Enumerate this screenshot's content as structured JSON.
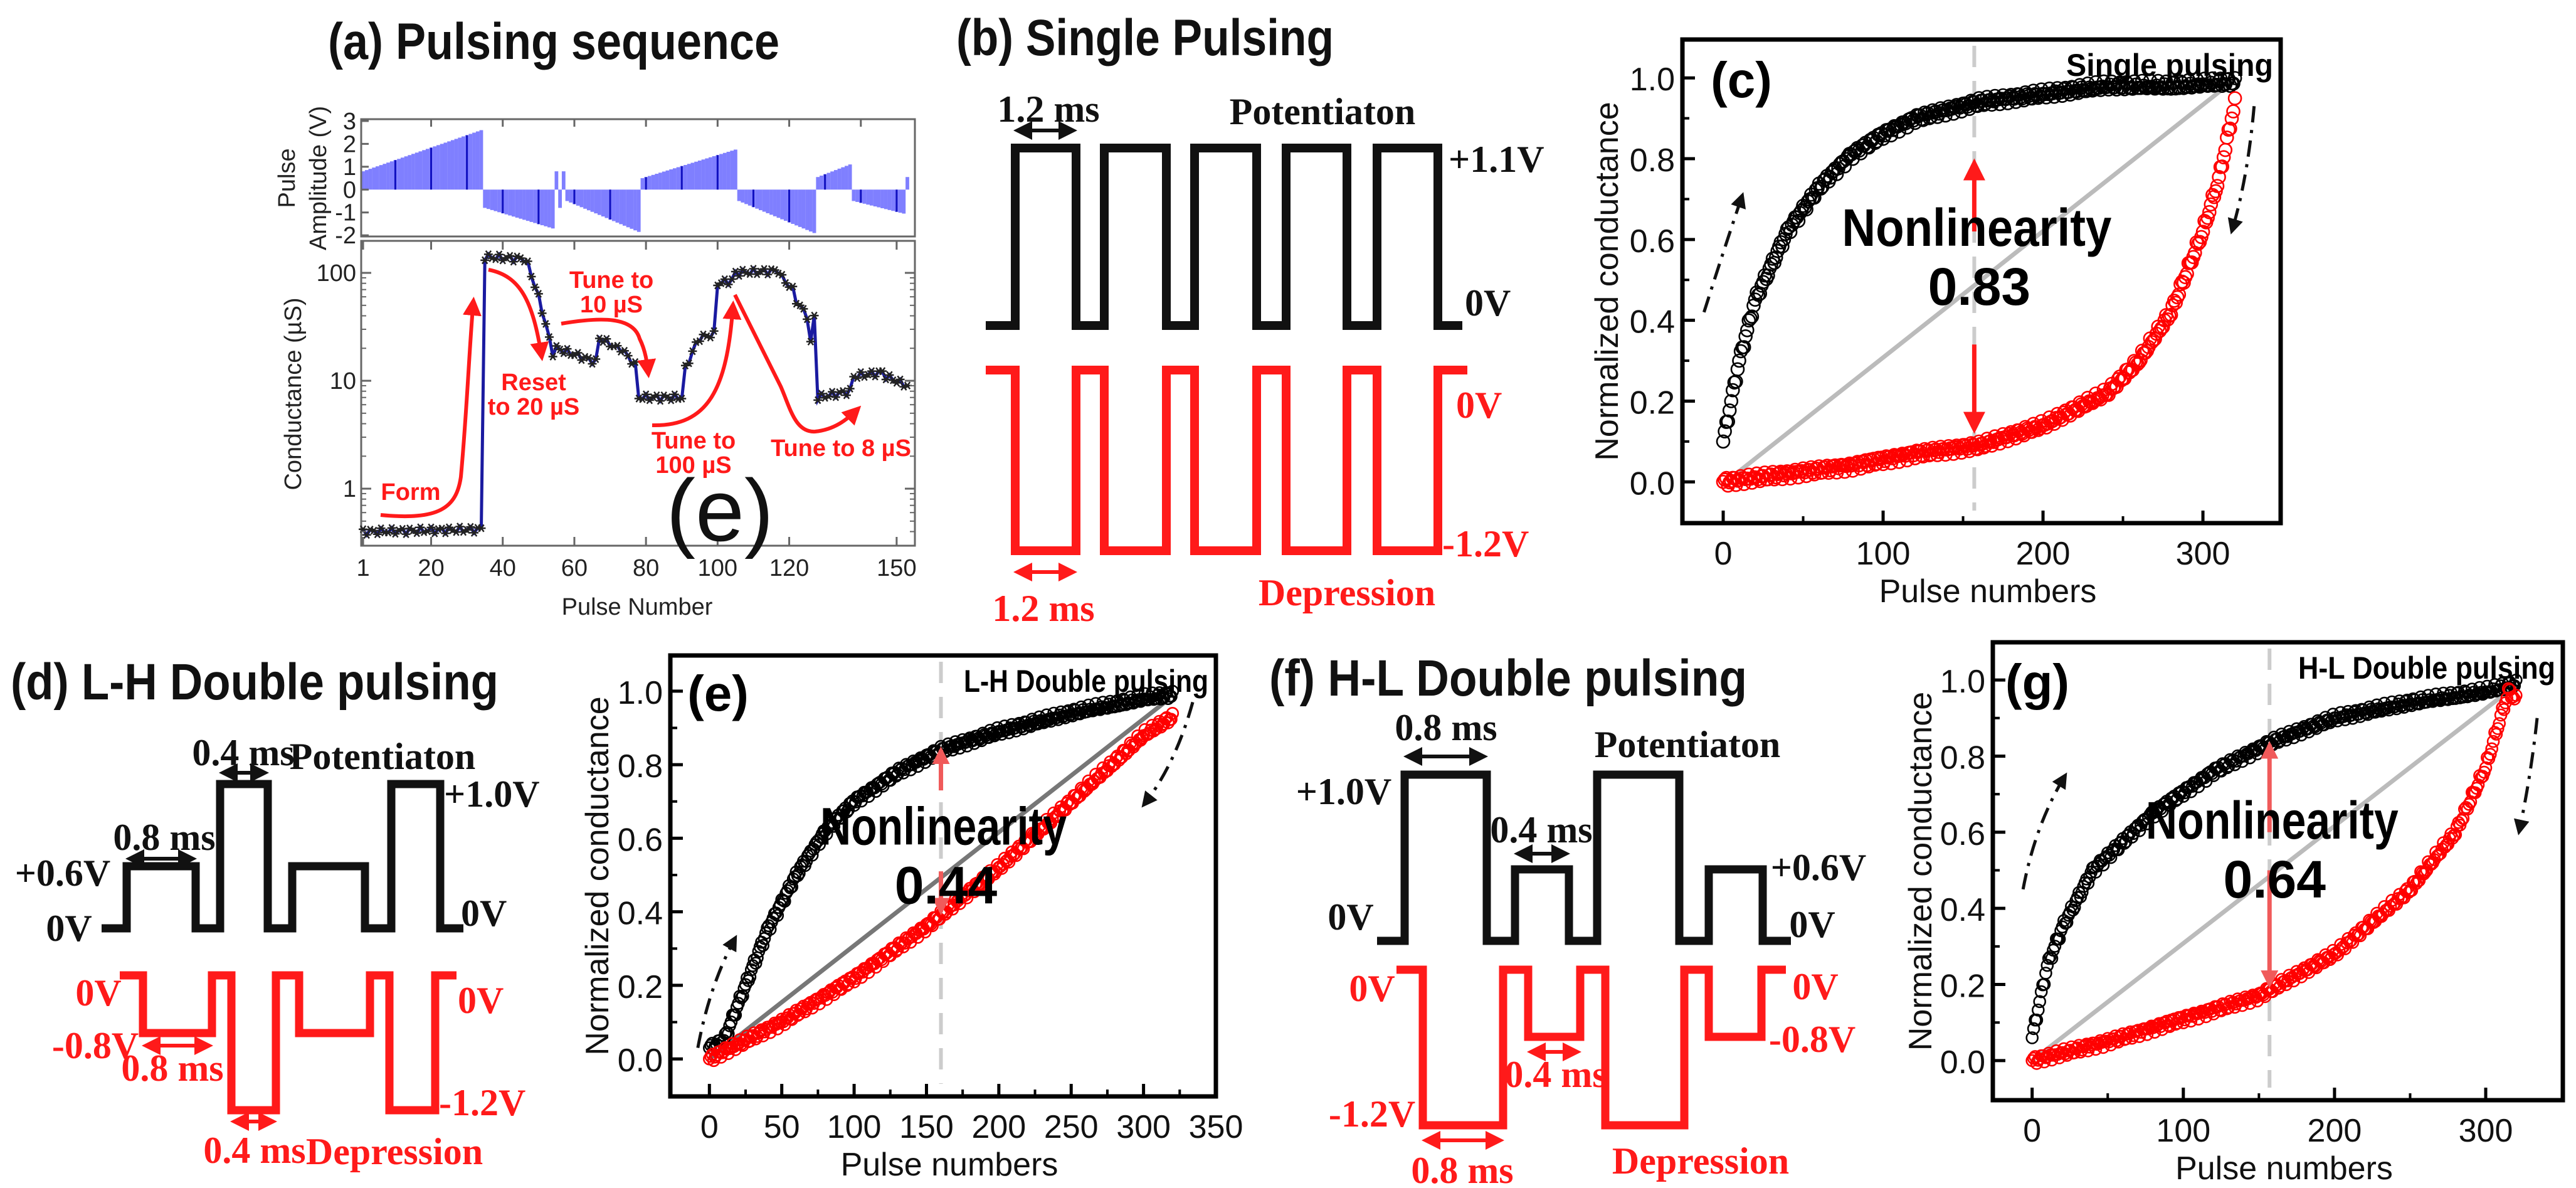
{
  "figure": {
    "a": {
      "title": "(a) Pulsing sequence",
      "overlay_label": "(e)",
      "annotations": {
        "form": "Form",
        "reset_1": "Reset",
        "reset_2": "to 20 µS",
        "tune10_1": "Tune to",
        "tune10_2": "10 µS",
        "tune100_1": "Tune to",
        "tune100_2": "100 µS",
        "tune8": "Tune to 8 µS"
      }
    },
    "b": {
      "title": "(b) Single Pulsing",
      "pot_label": "Potentiaton",
      "dep_label": "Depression",
      "width_top": "1.2 ms",
      "width_bottom": "1.2 ms",
      "v_high": "+1.1V",
      "v_zero_top": "0V",
      "v_zero_bottom": "0V",
      "v_low": "-1.2V"
    },
    "d": {
      "title": "(d) L-H Double pulsing",
      "pot_label": "Potentiaton",
      "dep_label": "Depression",
      "w_short_top": "0.4 ms",
      "w_long_top": "0.8 ms",
      "w_long_bottom": "0.8 ms",
      "w_short_bottom": "0.4 ms",
      "v_high": "+1.0V",
      "v_low_pos": "+0.6V",
      "v_zero_left": "0V",
      "v_zero_right": "0V",
      "v_zero_red_left": "0V",
      "v_zero_red_right": "0V",
      "v_neg_small": "-0.8V",
      "v_neg_big": "-1.2V"
    },
    "f": {
      "title": "(f) H-L Double pulsing",
      "pot_label": "Potentiaton",
      "dep_label": "Depression",
      "w_long_top": "0.8 ms",
      "w_short_top": "0.4 ms",
      "w_short_bottom": "0.4 ms",
      "w_long_bottom": "0.8 ms",
      "v_high": "+1.0V",
      "v_low_pos": "+0.6V",
      "v_zero_left": "0V",
      "v_zero_right": "0V",
      "v_zero_red_left": "0V",
      "v_zero_red_right": "0V",
      "v_neg_small": "-0.8V",
      "v_neg_big": "-1.2V"
    }
  },
  "chart_data": [
    {
      "id": "a_amplitude",
      "type": "bar",
      "ylabel_line1": "Pulse",
      "ylabel_line2": "Amplitude (V)",
      "xlim": [
        0.47,
        155.1
      ],
      "ylim": [
        -2.05,
        3.08
      ],
      "yticks": [
        -2,
        -1,
        0,
        1,
        2,
        3
      ],
      "color": "#7f7fff",
      "segments_note": "pulse_start, pulse_end, amplitude_start, amplitude_end",
      "segments": [
        [
          1,
          34,
          0.8,
          2.6
        ],
        [
          35,
          54,
          -0.8,
          -1.7
        ],
        [
          55,
          55,
          0.8,
          0.8
        ],
        [
          56,
          56,
          -0.8,
          -0.8
        ],
        [
          57,
          57,
          0.8,
          0.8
        ],
        [
          58,
          78,
          -0.5,
          -1.85
        ],
        [
          79,
          105,
          0.5,
          1.75
        ],
        [
          106,
          127,
          -0.5,
          -1.9
        ],
        [
          128,
          137,
          0.55,
          1.1
        ],
        [
          138,
          152,
          -0.5,
          -1.05
        ],
        [
          153,
          153,
          0.55,
          0.55
        ]
      ]
    },
    {
      "id": "a_conductance",
      "type": "line",
      "xlabel": "Pulse Number",
      "ylabel": "Conductance (µS)",
      "yscale": "log",
      "xlim": [
        0.47,
        155.1
      ],
      "ylim": [
        0.296,
        198
      ],
      "xticks": [
        1,
        20,
        40,
        60,
        80,
        100,
        120,
        150
      ],
      "yticks": [
        1,
        10,
        100
      ],
      "color": "#1a1aa0",
      "segments": [
        [
          1,
          34,
          0.4,
          0.42
        ],
        [
          35,
          35,
          140,
          140
        ],
        [
          36,
          46,
          140,
          135
        ],
        [
          47,
          50,
          120,
          60
        ],
        [
          51,
          54,
          45,
          18
        ],
        [
          55,
          66,
          20,
          15
        ],
        [
          67,
          72,
          25,
          20
        ],
        [
          73,
          77,
          20,
          14
        ],
        [
          78,
          90,
          7,
          7
        ],
        [
          91,
          94,
          13,
          22
        ],
        [
          95,
          99,
          25,
          27
        ],
        [
          100,
          104,
          80,
          85
        ],
        [
          105,
          117,
          100,
          105
        ],
        [
          118,
          121,
          90,
          70
        ],
        [
          122,
          125,
          55,
          40
        ],
        [
          126,
          127,
          22,
          40
        ],
        [
          128,
          137,
          7,
          8
        ],
        [
          138,
          146,
          11,
          12
        ],
        [
          147,
          153,
          11,
          9
        ]
      ]
    },
    {
      "id": "c",
      "type": "scatter",
      "panel_label": "(c)",
      "title": "Single pulsing",
      "xlabel": "Pulse numbers",
      "ylabel": "Normalized conductance",
      "xlim": [
        -25.5,
        348.6
      ],
      "ylim": [
        -0.102,
        1.095
      ],
      "xticks": [
        0,
        100,
        200,
        300
      ],
      "yticks": [
        0.0,
        0.2,
        0.4,
        0.6,
        0.8,
        1.0
      ],
      "series": [
        {
          "name": "Potentiation",
          "color": "#000000",
          "points": [
            [
              0,
              0.1
            ],
            [
              10,
              0.3
            ],
            [
              20,
              0.45
            ],
            [
              40,
              0.62
            ],
            [
              60,
              0.73
            ],
            [
              80,
              0.81
            ],
            [
              100,
              0.86
            ],
            [
              120,
              0.9
            ],
            [
              140,
              0.92
            ],
            [
              160,
              0.94
            ],
            [
              200,
              0.96
            ],
            [
              240,
              0.98
            ],
            [
              280,
              0.98
            ],
            [
              320,
              0.99
            ]
          ]
        },
        {
          "name": "Depression",
          "color": "#ff0000",
          "points": [
            [
              0,
              0
            ],
            [
              40,
              0.02
            ],
            [
              80,
              0.04
            ],
            [
              120,
              0.07
            ],
            [
              160,
              0.09
            ],
            [
              200,
              0.14
            ],
            [
              240,
              0.22
            ],
            [
              260,
              0.3
            ],
            [
              280,
              0.42
            ],
            [
              300,
              0.62
            ],
            [
              310,
              0.75
            ],
            [
              320,
              0.94
            ]
          ]
        }
      ],
      "reference_line": [
        [
          8,
          0.02
        ],
        [
          318,
          0.99
        ]
      ],
      "reference_color": "#bbbbbb",
      "dashed_x": 157,
      "annotation_label": "Nonlinearity",
      "annotation_value": "0.83"
    },
    {
      "id": "e",
      "type": "scatter",
      "panel_label": "(e)",
      "title": "L-H Double pulsing",
      "xlabel": "Pulse numbers",
      "ylabel": "Normalized conductance",
      "xlim": [
        -27,
        350
      ],
      "ylim": [
        -0.102,
        1.097
      ],
      "xticks": [
        0,
        50,
        100,
        150,
        200,
        250,
        300,
        350
      ],
      "yticks": [
        0.0,
        0.2,
        0.4,
        0.6,
        0.8,
        1.0
      ],
      "series": [
        {
          "name": "Potentiation",
          "color": "#000000",
          "points": [
            [
              0,
              0.03
            ],
            [
              10,
              0.05
            ],
            [
              20,
              0.15
            ],
            [
              40,
              0.35
            ],
            [
              60,
              0.5
            ],
            [
              80,
              0.62
            ],
            [
              100,
              0.7
            ],
            [
              130,
              0.78
            ],
            [
              160,
              0.84
            ],
            [
              200,
              0.89
            ],
            [
              250,
              0.94
            ],
            [
              300,
              0.98
            ],
            [
              320,
              0.99
            ]
          ]
        },
        {
          "name": "Depression",
          "color": "#ff0000",
          "points": [
            [
              0,
              0
            ],
            [
              50,
              0.1
            ],
            [
              100,
              0.22
            ],
            [
              150,
              0.36
            ],
            [
              200,
              0.52
            ],
            [
              250,
              0.7
            ],
            [
              300,
              0.88
            ],
            [
              320,
              0.93
            ]
          ]
        }
      ],
      "reference_line": [
        [
          0,
          0
        ],
        [
          318,
          0.98
        ]
      ],
      "reference_color": "#777777",
      "dashed_x": 160,
      "annotation_label": "Nonlinearity",
      "annotation_value": "0.44"
    },
    {
      "id": "g",
      "type": "scatter",
      "panel_label": "(g)",
      "title": "H-L Double pulsing",
      "xlabel": "Pulse numbers",
      "ylabel": "Normalized conductance",
      "xlim": [
        -26,
        351
      ],
      "ylim": [
        -0.104,
        1.099
      ],
      "xticks": [
        0,
        100,
        200,
        300
      ],
      "yticks": [
        0.0,
        0.2,
        0.4,
        0.6,
        0.8,
        1.0
      ],
      "series": [
        {
          "name": "Potentiation",
          "color": "#000000",
          "points": [
            [
              0,
              0.06
            ],
            [
              10,
              0.25
            ],
            [
              20,
              0.35
            ],
            [
              40,
              0.5
            ],
            [
              80,
              0.65
            ],
            [
              120,
              0.76
            ],
            [
              160,
              0.84
            ],
            [
              200,
              0.9
            ],
            [
              250,
              0.94
            ],
            [
              300,
              0.97
            ],
            [
              320,
              0.99
            ]
          ]
        },
        {
          "name": "Depression",
          "color": "#ff0000",
          "points": [
            [
              0,
              0
            ],
            [
              50,
              0.05
            ],
            [
              100,
              0.11
            ],
            [
              150,
              0.17
            ],
            [
              200,
              0.28
            ],
            [
              250,
              0.45
            ],
            [
              280,
              0.6
            ],
            [
              300,
              0.77
            ],
            [
              315,
              0.97
            ],
            [
              320,
              0.95
            ]
          ]
        }
      ],
      "reference_line": [
        [
          0,
          0
        ],
        [
          318,
          0.98
        ]
      ],
      "reference_color": "#bbbbbb",
      "dashed_x": 157,
      "annotation_label": "Nonlinearity",
      "annotation_value": "0.64"
    }
  ]
}
